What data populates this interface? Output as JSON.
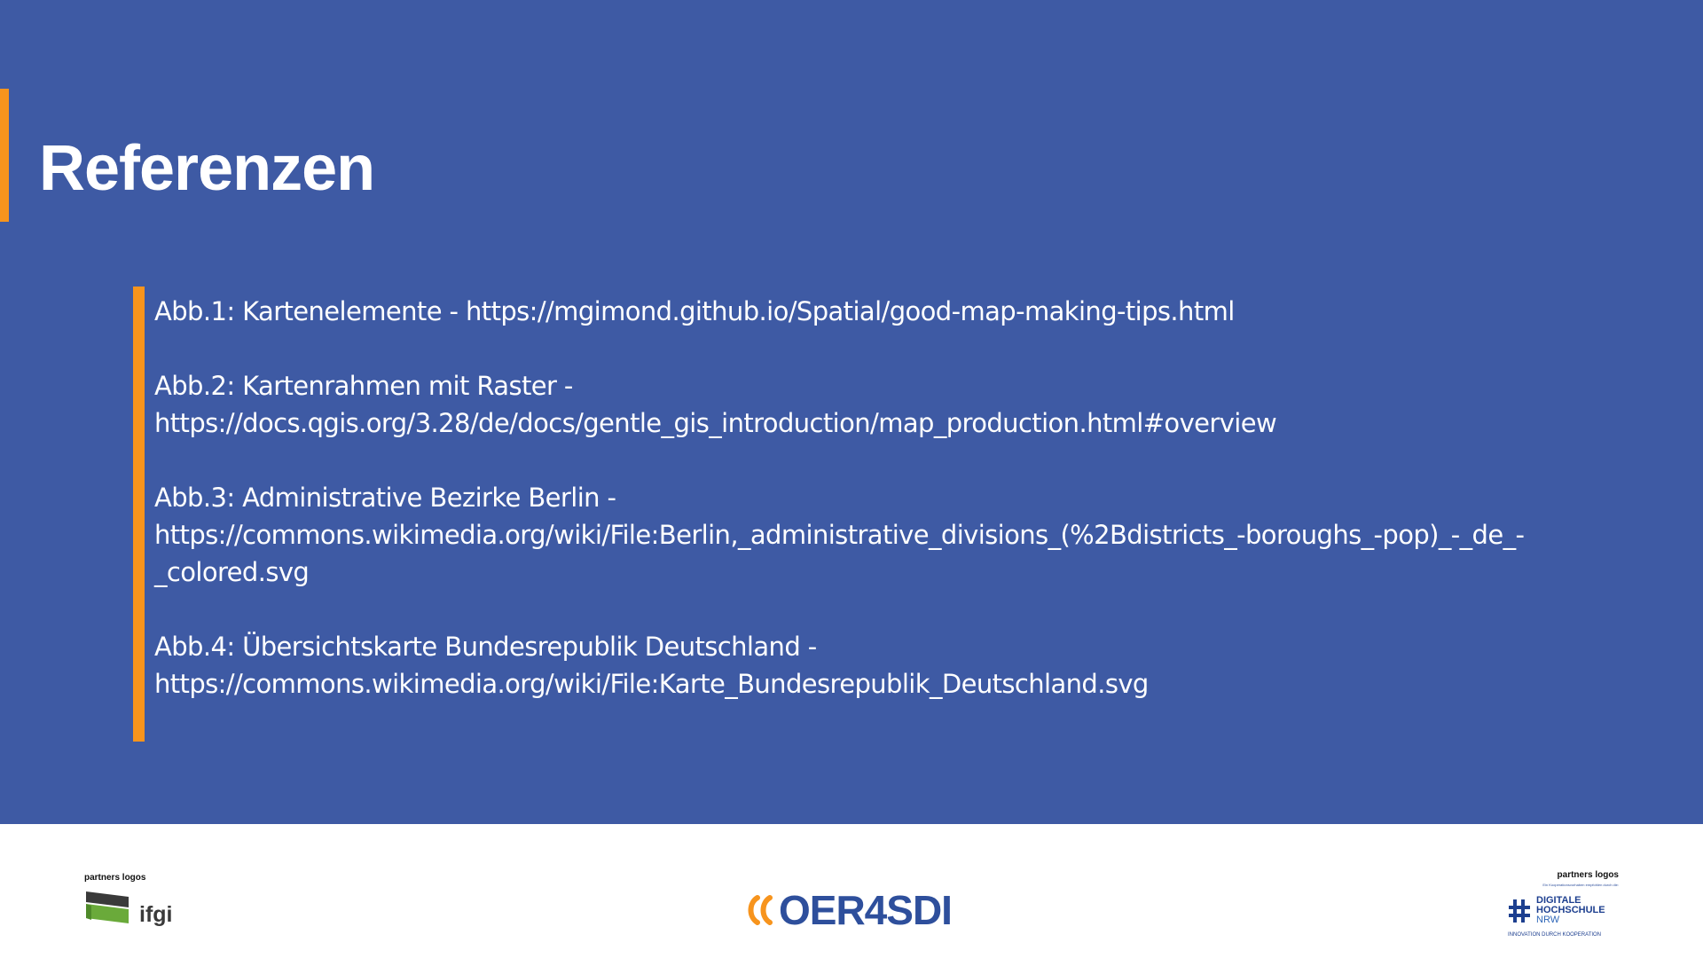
{
  "slide": {
    "title": "Referenzen",
    "references": [
      {
        "lines": [
          "Abb.1: Kartenelemente - https://mgimond.github.io/Spatial/good-map-making-tips.html"
        ]
      },
      {
        "lines": [
          "Abb.2: Kartenrahmen mit Raster -",
          "https://docs.qgis.org/3.28/de/docs/gentle_gis_introduction/map_production.html#overview"
        ]
      },
      {
        "lines": [
          "Abb.3: Administrative Bezirke Berlin -",
          "https://commons.wikimedia.org/wiki/File:Berlin,_administrative_divisions_(%2Bdistricts_-boroughs_-pop)_-_de_-",
          "_colored.svg"
        ]
      },
      {
        "lines": [
          "Abb.4: Übersichtskarte Bundesrepublik Deutschland -",
          "https://commons.wikimedia.org/wiki/File:Karte_Bundesrepublik_Deutschland.svg"
        ]
      }
    ]
  },
  "footer": {
    "left_partner_label": "partners logos",
    "left_logo_text": "ifgi",
    "center_logo_text": "OER4SDI",
    "right_partner_label": "partners logos",
    "right_small_text": "Ein Kooperationsvorhaben empfohlen durch die:",
    "right_logo_line1": "DIGITALE",
    "right_logo_line2": "HOCHSCHULE",
    "right_logo_line3": "NRW",
    "right_logo_claim": "INNOVATION DURCH KOOPERATION"
  },
  "colors": {
    "background": "#3e5aa4",
    "accent": "#f7941d",
    "footer_bg": "#ffffff",
    "logo_blue": "#2e4f9c"
  }
}
